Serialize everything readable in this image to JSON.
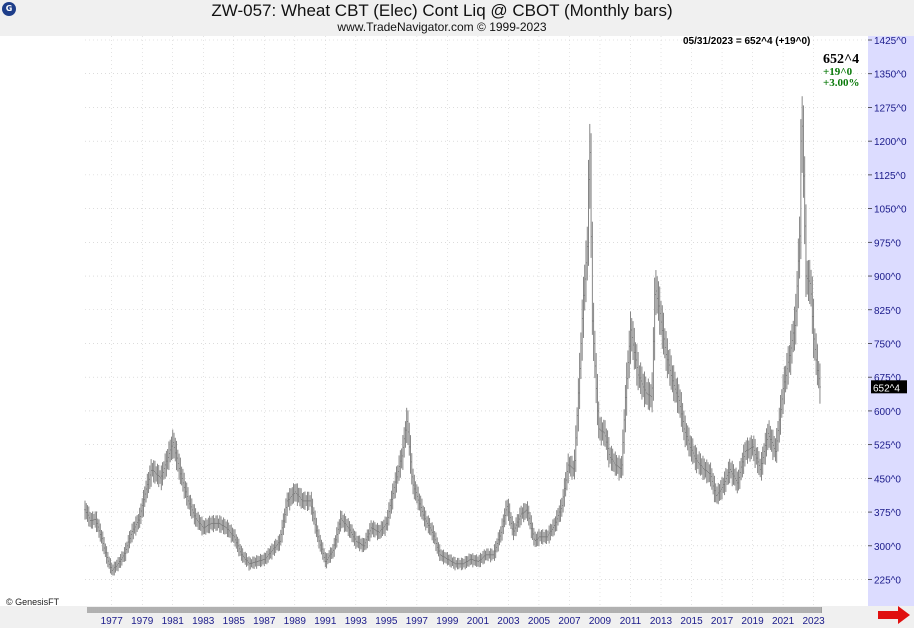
{
  "header": {
    "logo_text": "G",
    "title": "ZW-057:  Wheat CBT (Elec) Cont Liq @ CBOT  (Monthly bars)",
    "subtitle": "www.TradeNavigator.com © 1999-2023"
  },
  "readout": {
    "text": "05/31/2023 = 652^4 (+19^0)",
    "last_price": "652^4",
    "change": "+19^0",
    "percent": "+3.00%",
    "price_tag": "652^4"
  },
  "footer": {
    "copyright": "© GenesisFT"
  },
  "colors": {
    "bars": "#7a7a7a",
    "axis_text": "#1a1a8a",
    "axis_bg": "#dcdcff",
    "grid": "#c8c8c8",
    "arrow": "#e01010",
    "change": "#0a7a0a"
  },
  "chart_data": {
    "type": "bar",
    "bar_style": "OHLC monthly",
    "x_range": [
      1975.25,
      2023.42
    ],
    "ylim": [
      175,
      1425
    ],
    "y_ticks": [
      1425,
      1350,
      1275,
      1200,
      1125,
      1050,
      975,
      900,
      825,
      750,
      675,
      600,
      525,
      450,
      375,
      300,
      225
    ],
    "y_tick_labels": [
      "1425^0",
      "1350^0",
      "1275^0",
      "1200^0",
      "1125^0",
      "1050^0",
      "975^0",
      "900^0",
      "825^0",
      "750^0",
      "675^0",
      "600^0",
      "525^0",
      "450^0",
      "375^0",
      "300^0",
      "225^0"
    ],
    "x_ticks": [
      1977,
      1979,
      1981,
      1983,
      1985,
      1987,
      1989,
      1991,
      1993,
      1995,
      1997,
      1999,
      2001,
      2003,
      2005,
      2007,
      2009,
      2011,
      2013,
      2015,
      2017,
      2019,
      2021,
      2023
    ],
    "x_tick_labels": [
      "1977",
      "1979",
      "1981",
      "1983",
      "1985",
      "1987",
      "1989",
      "1991",
      "1993",
      "1995",
      "1997",
      "1999",
      "2001",
      "2003",
      "2005",
      "2007",
      "2009",
      "2011",
      "2013",
      "2015",
      "2017",
      "2019",
      "2021",
      "2023"
    ],
    "grid": true,
    "last_value": 652.5,
    "anchor_points": [
      [
        1975.25,
        380
      ],
      [
        1975.6,
        355
      ],
      [
        1975.9,
        360
      ],
      [
        1976.3,
        320
      ],
      [
        1976.7,
        270
      ],
      [
        1977.0,
        245
      ],
      [
        1977.4,
        260
      ],
      [
        1977.8,
        280
      ],
      [
        1978.3,
        330
      ],
      [
        1978.8,
        360
      ],
      [
        1979.2,
        420
      ],
      [
        1979.6,
        470
      ],
      [
        1980.2,
        450
      ],
      [
        1980.8,
        510
      ],
      [
        1981.0,
        530
      ],
      [
        1981.5,
        460
      ],
      [
        1982.0,
        400
      ],
      [
        1982.5,
        360
      ],
      [
        1983.0,
        340
      ],
      [
        1983.5,
        350
      ],
      [
        1984.0,
        350
      ],
      [
        1984.5,
        340
      ],
      [
        1985.0,
        320
      ],
      [
        1985.5,
        280
      ],
      [
        1986.0,
        260
      ],
      [
        1986.5,
        265
      ],
      [
        1987.0,
        270
      ],
      [
        1987.5,
        290
      ],
      [
        1988.0,
        310
      ],
      [
        1988.5,
        400
      ],
      [
        1989.0,
        420
      ],
      [
        1989.5,
        400
      ],
      [
        1990.0,
        400
      ],
      [
        1990.5,
        320
      ],
      [
        1991.0,
        265
      ],
      [
        1991.5,
        290
      ],
      [
        1992.0,
        360
      ],
      [
        1992.5,
        340
      ],
      [
        1993.0,
        310
      ],
      [
        1993.5,
        300
      ],
      [
        1994.0,
        340
      ],
      [
        1994.5,
        330
      ],
      [
        1995.0,
        350
      ],
      [
        1995.5,
        430
      ],
      [
        1996.0,
        500
      ],
      [
        1996.35,
        580
      ],
      [
        1996.7,
        440
      ],
      [
        1997.0,
        410
      ],
      [
        1997.5,
        360
      ],
      [
        1998.0,
        330
      ],
      [
        1998.5,
        280
      ],
      [
        1999.0,
        270
      ],
      [
        1999.5,
        260
      ],
      [
        2000.0,
        260
      ],
      [
        2000.5,
        270
      ],
      [
        2001.0,
        265
      ],
      [
        2001.5,
        280
      ],
      [
        2002.0,
        280
      ],
      [
        2002.5,
        330
      ],
      [
        2002.9,
        390
      ],
      [
        2003.3,
        330
      ],
      [
        2003.8,
        370
      ],
      [
        2004.2,
        380
      ],
      [
        2004.7,
        310
      ],
      [
        2005.0,
        320
      ],
      [
        2005.5,
        320
      ],
      [
        2006.0,
        345
      ],
      [
        2006.5,
        390
      ],
      [
        2006.9,
        480
      ],
      [
        2007.3,
        470
      ],
      [
        2007.6,
        650
      ],
      [
        2007.9,
        850
      ],
      [
        2008.2,
        980
      ],
      [
        2008.3,
        1250
      ],
      [
        2008.5,
        800
      ],
      [
        2008.9,
        560
      ],
      [
        2009.3,
        550
      ],
      [
        2009.6,
        500
      ],
      [
        2010.0,
        480
      ],
      [
        2010.4,
        470
      ],
      [
        2010.7,
        650
      ],
      [
        2011.0,
        780
      ],
      [
        2011.5,
        680
      ],
      [
        2012.0,
        640
      ],
      [
        2012.4,
        630
      ],
      [
        2012.6,
        880
      ],
      [
        2012.9,
        820
      ],
      [
        2013.3,
        730
      ],
      [
        2013.8,
        660
      ],
      [
        2014.2,
        620
      ],
      [
        2014.5,
        560
      ],
      [
        2014.9,
        520
      ],
      [
        2015.3,
        490
      ],
      [
        2015.8,
        470
      ],
      [
        2016.2,
        460
      ],
      [
        2016.6,
        410
      ],
      [
        2017.0,
        430
      ],
      [
        2017.5,
        470
      ],
      [
        2018.0,
        440
      ],
      [
        2018.5,
        510
      ],
      [
        2019.0,
        520
      ],
      [
        2019.5,
        470
      ],
      [
        2020.0,
        550
      ],
      [
        2020.5,
        510
      ],
      [
        2021.0,
        650
      ],
      [
        2021.4,
        720
      ],
      [
        2021.8,
        800
      ],
      [
        2022.1,
        1000
      ],
      [
        2022.2,
        1300
      ],
      [
        2022.5,
        900
      ],
      [
        2022.8,
        880
      ],
      [
        2023.0,
        760
      ],
      [
        2023.25,
        690
      ],
      [
        2023.42,
        652.5
      ]
    ]
  }
}
